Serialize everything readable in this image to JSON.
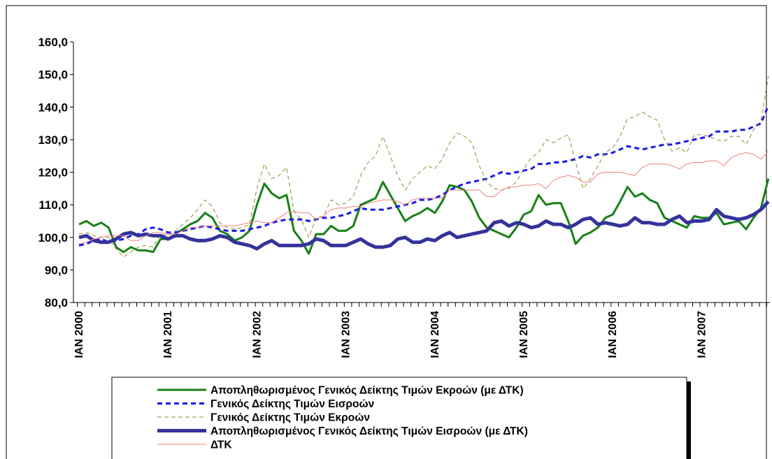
{
  "chart_data": {
    "type": "line",
    "categories": [
      "IAN 2000",
      null,
      null,
      null,
      null,
      null,
      null,
      null,
      null,
      null,
      null,
      null,
      "IAN 2001",
      null,
      null,
      null,
      null,
      null,
      null,
      null,
      null,
      null,
      null,
      null,
      "IAN 2002",
      null,
      null,
      null,
      null,
      null,
      null,
      null,
      null,
      null,
      null,
      null,
      "IAN 2003",
      null,
      null,
      null,
      null,
      null,
      null,
      null,
      null,
      null,
      null,
      null,
      "IAN 2004",
      null,
      null,
      null,
      null,
      null,
      null,
      null,
      null,
      null,
      null,
      null,
      "IAN 2005",
      null,
      null,
      null,
      null,
      null,
      null,
      null,
      null,
      null,
      null,
      null,
      "IAN 2006",
      null,
      null,
      null,
      null,
      null,
      null,
      null,
      null,
      null,
      null,
      null,
      "IAN 2007",
      null,
      null,
      null,
      null,
      null,
      null,
      null,
      null,
      null
    ],
    "ylim": [
      80,
      160
    ],
    "yticks": [
      {
        "value": 80,
        "label": "80,0"
      },
      {
        "value": 90,
        "label": "90,0"
      },
      {
        "value": 100,
        "label": "100,0"
      },
      {
        "value": 110,
        "label": "110,0"
      },
      {
        "value": 120,
        "label": "120,0"
      },
      {
        "value": 130,
        "label": "130,0"
      },
      {
        "value": 140,
        "label": "140,0"
      },
      {
        "value": 150,
        "label": "150,0"
      },
      {
        "value": 160,
        "label": "160,0"
      }
    ],
    "grid": false,
    "legend": "bottom",
    "series": [
      {
        "name": "Αποπληθωρισμένος Γενικός Δείκτης Τιμών Εκροών (με ΔΤΚ)",
        "color": "#178017",
        "linestyle": "solid",
        "weight": "bold",
        "values": [
          104,
          105,
          103.5,
          104.5,
          103,
          97,
          95.5,
          97,
          96,
          96,
          95.5,
          99.5,
          99.5,
          101,
          102.5,
          104,
          105,
          107.5,
          106,
          102,
          101,
          99,
          100,
          102,
          110,
          116.5,
          113.5,
          112,
          113,
          102,
          99,
          95,
          101,
          101,
          103.5,
          102,
          102,
          103.5,
          110,
          111,
          112,
          117,
          113,
          109,
          105,
          106.5,
          107.5,
          109,
          107.5,
          111,
          116,
          115.5,
          114.5,
          111,
          106,
          103,
          102,
          101,
          100,
          103,
          107,
          108,
          113,
          110,
          110.5,
          110.5,
          105,
          98,
          100.5,
          101.5,
          103,
          106,
          107,
          111,
          115.5,
          112.5,
          113.5,
          111.5,
          110.5,
          106,
          105,
          104,
          103,
          106.5,
          106,
          106,
          107.5,
          104,
          104.5,
          105,
          102.5,
          106,
          109,
          118
        ]
      },
      {
        "name": "Γενικός Δείκτης Τιμών Εισροών",
        "color": "#1a1ae6",
        "linestyle": "dashed",
        "weight": "bold",
        "values": [
          97.5,
          98,
          99,
          99.5,
          98.5,
          99,
          99.5,
          100.5,
          101,
          102.5,
          103,
          102.5,
          101.5,
          101.5,
          102,
          102.5,
          103,
          103.5,
          103,
          102.5,
          102,
          102,
          102,
          102.5,
          103,
          103.5,
          104.5,
          105,
          105.5,
          105.5,
          105.5,
          105,
          105.5,
          106,
          106,
          106.5,
          107,
          108,
          109,
          108.5,
          108.5,
          108.5,
          109,
          109.5,
          110,
          110.5,
          111.5,
          111.5,
          112,
          113,
          114.5,
          115.5,
          116.5,
          117,
          117.5,
          118,
          119,
          120,
          119.5,
          120,
          120.5,
          121,
          122.5,
          122.5,
          123,
          123,
          123.5,
          124,
          125,
          124.5,
          125.5,
          125.5,
          126,
          127,
          128,
          127.5,
          127,
          127.5,
          128,
          128.5,
          128.5,
          129,
          129.5,
          130,
          130.5,
          131,
          132.5,
          132.5,
          132.5,
          133,
          133,
          134,
          135,
          140.5
        ]
      },
      {
        "name": "Γενικός Δείκτης Τιμών Εκροών",
        "color": "#8c8c30",
        "linestyle": "dashed",
        "weight": "thin",
        "values": [
          101,
          101.5,
          100.5,
          100,
          100,
          96.5,
          94,
          95.5,
          97,
          97.5,
          97,
          101,
          100.5,
          102,
          104,
          106,
          108.5,
          111.5,
          109.5,
          104.5,
          103,
          102.5,
          103,
          104,
          115,
          122.5,
          118,
          119,
          121.5,
          108,
          105.5,
          100,
          106,
          106.5,
          111.5,
          110,
          110.5,
          112.5,
          119,
          123,
          125,
          131,
          125,
          119,
          114.5,
          118,
          120,
          122,
          121,
          124,
          129,
          132,
          131,
          129,
          122,
          117,
          115,
          114.5,
          115,
          117,
          121,
          124.5,
          126,
          130,
          129,
          130.5,
          131.5,
          123,
          115,
          118,
          122,
          126,
          127.5,
          131,
          136.5,
          137,
          138.5,
          137,
          136,
          130,
          126.5,
          127.5,
          126,
          131.5,
          131.5,
          131,
          130,
          129.5,
          131,
          131,
          128.5,
          133,
          136,
          149.5
        ]
      },
      {
        "name": "Αποπληθωρισμένος Γενικός Δείκτης Τιμών Εισροών (με ΔΤΚ)",
        "color": "#33339a",
        "linestyle": "solid",
        "weight": "heavy",
        "values": [
          100,
          100.5,
          99,
          98.5,
          98.5,
          99.5,
          101,
          101.5,
          100.5,
          101,
          100.5,
          100.5,
          99.5,
          100.5,
          100.5,
          99.5,
          99,
          99,
          99.5,
          100.5,
          100,
          98.5,
          98,
          97.5,
          96.5,
          98,
          99,
          97.5,
          97.5,
          97.5,
          97.5,
          98,
          99.5,
          99,
          97.5,
          97.5,
          97.5,
          98.5,
          99.5,
          98,
          97,
          97,
          97.5,
          99.5,
          100,
          98.5,
          98.5,
          99.5,
          99,
          100.5,
          101.5,
          100,
          100.5,
          101,
          101.5,
          102,
          104.5,
          105,
          103.5,
          104.5,
          104,
          103,
          103.5,
          105,
          104,
          104,
          103,
          104,
          105.5,
          106,
          104,
          104.5,
          104,
          103.5,
          104,
          106,
          104.5,
          104.5,
          104,
          104,
          105.5,
          106.5,
          104.5,
          105,
          105,
          105.5,
          108.5,
          106.5,
          106,
          105.5,
          106,
          107,
          108.5,
          111
        ]
      },
      {
        "name": "ΔΤΚ",
        "color": "#f08080",
        "linestyle": "solid",
        "weight": "thin",
        "values": [
          98,
          98.5,
          99.5,
          100,
          100.5,
          100.5,
          100.5,
          99,
          99,
          100.5,
          101.5,
          101.5,
          101,
          101,
          102,
          103,
          103,
          103.5,
          103.5,
          103.5,
          103.5,
          103.5,
          104,
          104.5,
          105,
          104.5,
          104.5,
          106,
          107.5,
          108,
          107.5,
          107.5,
          105.5,
          106.5,
          108.5,
          109,
          109,
          109.5,
          109.5,
          110.5,
          111,
          111.5,
          111.5,
          111,
          110,
          111.5,
          112,
          112,
          112,
          112,
          114.5,
          114.5,
          114.5,
          114.5,
          114.5,
          112.5,
          112.5,
          114.5,
          115.5,
          115.5,
          116,
          116,
          116.5,
          115,
          117.5,
          118.5,
          119,
          118.5,
          117,
          117,
          119.5,
          120,
          120,
          120,
          119.5,
          119,
          121.5,
          122.5,
          122.5,
          122.5,
          122,
          121,
          122.5,
          123,
          123,
          123.5,
          123.5,
          122,
          124.5,
          125.5,
          126,
          125.5,
          124,
          126.5
        ]
      }
    ]
  }
}
